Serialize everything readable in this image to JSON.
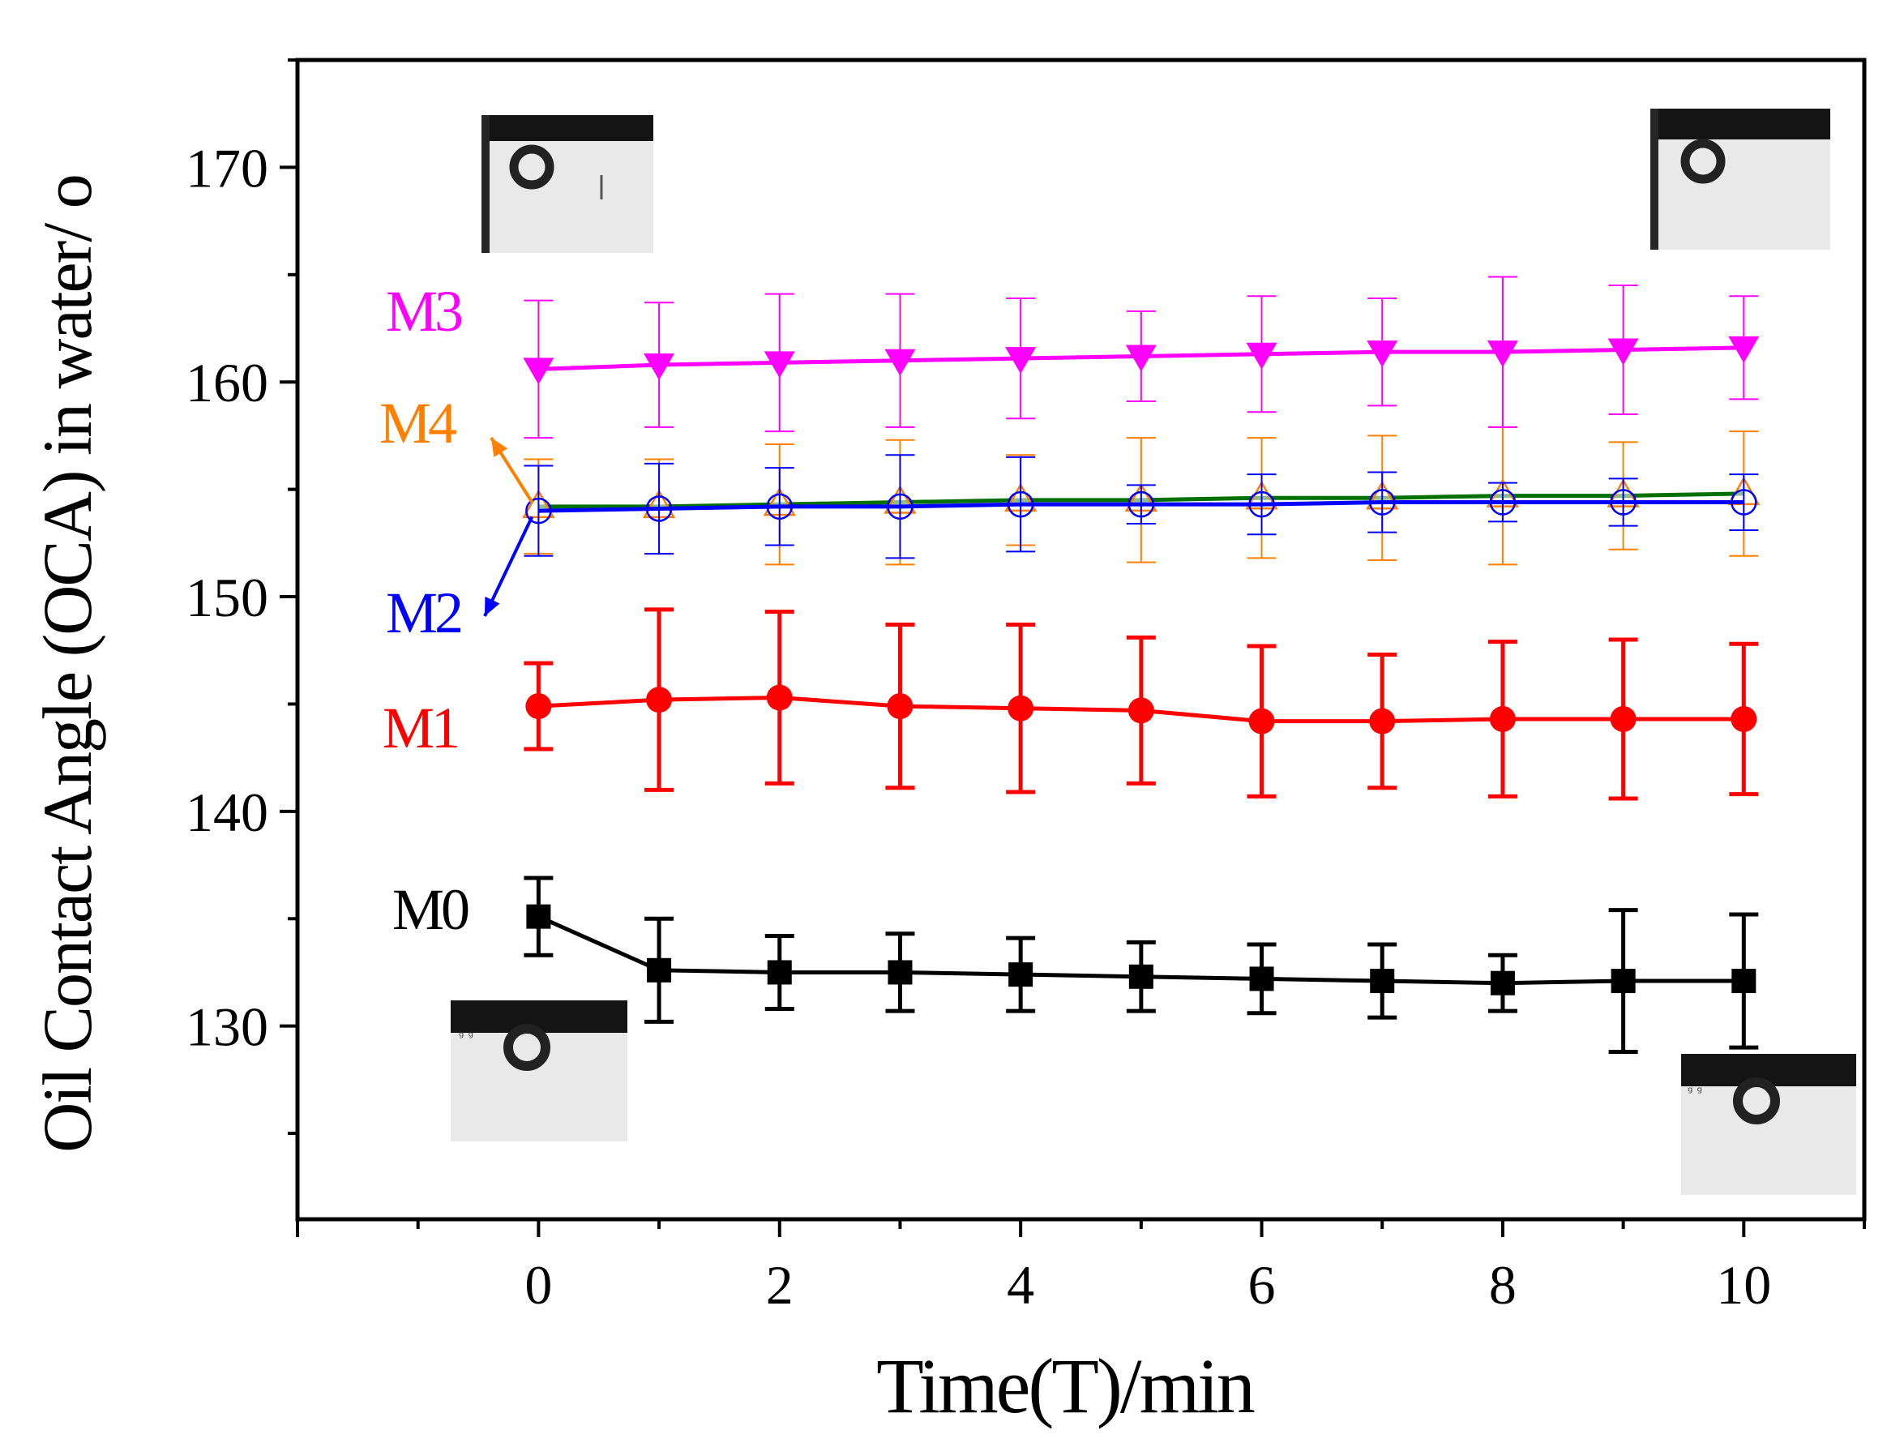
{
  "chart_data": {
    "type": "line",
    "title": "",
    "xlabel": "Time(T)/min",
    "ylabel": "Oil Contact Angle (OCA) in water/ o",
    "xlim": [
      -2,
      11
    ],
    "ylim": [
      121,
      175
    ],
    "x": [
      0,
      1,
      2,
      3,
      4,
      5,
      6,
      7,
      8,
      9,
      10
    ],
    "x_ticks": [
      0,
      2,
      4,
      6,
      8,
      10
    ],
    "y_ticks": [
      130,
      140,
      150,
      160,
      170
    ],
    "series": [
      {
        "name": "M0",
        "color": "#000000",
        "marker": "square",
        "values": [
          135.1,
          132.6,
          132.5,
          132.5,
          132.4,
          132.3,
          132.2,
          132.1,
          132.0,
          132.1,
          132.1
        ],
        "errors": [
          1.8,
          2.4,
          1.7,
          1.8,
          1.7,
          1.6,
          1.6,
          1.7,
          1.3,
          3.3,
          3.1
        ]
      },
      {
        "name": "M1",
        "color": "#ff0000",
        "marker": "circle",
        "values": [
          144.9,
          145.2,
          145.3,
          144.9,
          144.8,
          144.7,
          144.2,
          144.2,
          144.3,
          144.3,
          144.3
        ],
        "errors": [
          2.0,
          4.2,
          4.0,
          3.8,
          3.9,
          3.4,
          3.5,
          3.1,
          3.6,
          3.7,
          3.5
        ]
      },
      {
        "name": "M2",
        "color": "#0000ff",
        "marker": "open-circle",
        "values": [
          154.0,
          154.1,
          154.2,
          154.2,
          154.3,
          154.3,
          154.3,
          154.4,
          154.4,
          154.4,
          154.4
        ],
        "errors": [
          2.1,
          2.1,
          1.8,
          2.4,
          2.2,
          0.9,
          1.4,
          1.4,
          0.9,
          1.1,
          1.3
        ]
      },
      {
        "name": "M3",
        "color": "#ff00ff",
        "marker": "down-triangle",
        "values": [
          160.6,
          160.8,
          160.9,
          161.0,
          161.1,
          161.2,
          161.3,
          161.4,
          161.4,
          161.5,
          161.6
        ],
        "errors": [
          3.2,
          2.9,
          3.2,
          3.1,
          2.8,
          2.1,
          2.7,
          2.5,
          3.5,
          3.0,
          2.4
        ]
      },
      {
        "name": "M4",
        "color": "#ff8000",
        "line_color": "#007000",
        "marker": "open-up-triangle",
        "values": [
          154.2,
          154.2,
          154.3,
          154.4,
          154.5,
          154.5,
          154.6,
          154.6,
          154.7,
          154.7,
          154.8
        ],
        "errors": [
          2.2,
          2.2,
          2.8,
          2.9,
          2.1,
          2.9,
          2.8,
          2.9,
          3.2,
          2.5,
          2.9
        ]
      }
    ],
    "annotations": [
      {
        "text": "M3",
        "color": "#ff00ff"
      },
      {
        "text": "M4",
        "color": "#ff8000"
      },
      {
        "text": "M2",
        "color": "#0000ff"
      },
      {
        "text": "M1",
        "color": "#ff0000"
      },
      {
        "text": "M0",
        "color": "#000000"
      }
    ]
  }
}
